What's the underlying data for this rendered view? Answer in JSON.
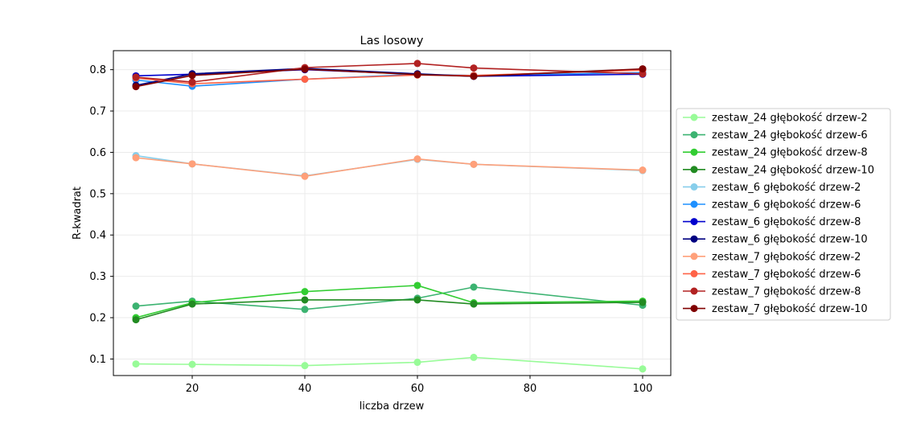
{
  "chart_data": {
    "type": "line",
    "title": "Las losowy",
    "xlabel": "liczba drzew",
    "ylabel": "R-kwadrat",
    "x": [
      10,
      20,
      40,
      60,
      70,
      100
    ],
    "xlim": [
      6,
      105
    ],
    "ylim": [
      0.06,
      0.846
    ],
    "xticks": [
      20,
      40,
      60,
      80,
      100
    ],
    "xtick_labels": [
      "20",
      "40",
      "60",
      "80",
      "100"
    ],
    "yticks": [
      0.1,
      0.2,
      0.3,
      0.4,
      0.5,
      0.6,
      0.7,
      0.8
    ],
    "ytick_labels": [
      "0.1",
      "0.2",
      "0.3",
      "0.4",
      "0.5",
      "0.6",
      "0.7",
      "0.8"
    ],
    "grid": true,
    "legend_position": "right outside",
    "series": [
      {
        "name": "zestaw_24 głębokość drzew-2",
        "color": "#98fb98",
        "values": [
          0.088,
          0.087,
          0.084,
          0.092,
          0.104,
          0.076
        ]
      },
      {
        "name": "zestaw_24 głębokość drzew-6",
        "color": "#3cb371",
        "values": [
          0.228,
          0.24,
          0.22,
          0.247,
          0.274,
          0.23
        ]
      },
      {
        "name": "zestaw_24 głębokość drzew-8",
        "color": "#32cd32",
        "values": [
          0.2,
          0.236,
          0.263,
          0.278,
          0.236,
          0.24
        ]
      },
      {
        "name": "zestaw_24 głębokość drzew-10",
        "color": "#228b22",
        "values": [
          0.195,
          0.233,
          0.243,
          0.243,
          0.233,
          0.237
        ]
      },
      {
        "name": "zestaw_6 głębokość drzew-2",
        "color": "#87ceeb",
        "values": [
          0.592,
          0.572,
          0.543,
          0.583,
          0.571,
          0.556
        ]
      },
      {
        "name": "zestaw_6 głębokość drzew-6",
        "color": "#1e90ff",
        "values": [
          0.775,
          0.76,
          0.777,
          0.789,
          0.786,
          0.793
        ]
      },
      {
        "name": "zestaw_6 głębokość drzew-8",
        "color": "#0000cd",
        "values": [
          0.785,
          0.789,
          0.8,
          0.789,
          0.784,
          0.789
        ]
      },
      {
        "name": "zestaw_6 głębokość drzew-10",
        "color": "#000080",
        "values": [
          0.762,
          0.79,
          0.803,
          0.79,
          0.784,
          0.801
        ]
      },
      {
        "name": "zestaw_7 głębokość drzew-2",
        "color": "#ffa07a",
        "values": [
          0.587,
          0.572,
          0.542,
          0.584,
          0.571,
          0.557
        ]
      },
      {
        "name": "zestaw_7 głębokość drzew-6",
        "color": "#ff6347",
        "values": [
          0.78,
          0.766,
          0.777,
          0.787,
          0.786,
          0.799
        ]
      },
      {
        "name": "zestaw_7 głębokość drzew-8",
        "color": "#b22222",
        "values": [
          0.782,
          0.77,
          0.805,
          0.815,
          0.804,
          0.79
        ]
      },
      {
        "name": "zestaw_7 głębokość drzew-10",
        "color": "#800000",
        "values": [
          0.759,
          0.786,
          0.801,
          0.788,
          0.784,
          0.802
        ]
      }
    ]
  }
}
